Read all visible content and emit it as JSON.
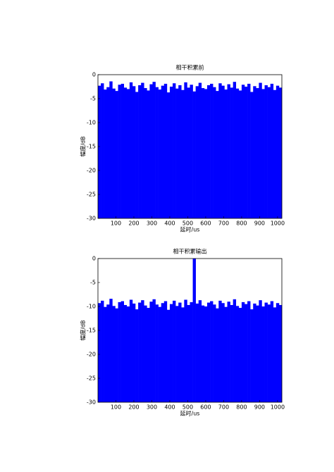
{
  "chart_data": [
    {
      "type": "bar",
      "title": "相干积累前",
      "xlabel": "延时/us",
      "ylabel": "幅度/dB",
      "color": "#0000ff",
      "x": [
        8,
        24,
        40,
        56,
        72,
        88,
        104,
        120,
        136,
        152,
        168,
        184,
        200,
        216,
        232,
        248,
        264,
        280,
        296,
        312,
        328,
        344,
        360,
        376,
        392,
        408,
        424,
        440,
        456,
        472,
        488,
        504,
        520,
        536,
        552,
        568,
        584,
        600,
        616,
        632,
        648,
        664,
        680,
        696,
        712,
        728,
        744,
        760,
        776,
        792,
        808,
        824,
        840,
        856,
        872,
        888,
        904,
        920,
        936,
        952,
        968,
        984,
        1000,
        1016
      ],
      "values": [
        -2.3,
        -1.8,
        -3.1,
        -2.6,
        -1.4,
        -2.9,
        -3.4,
        -2.1,
        -1.9,
        -2.7,
        -3.0,
        -1.6,
        -2.4,
        -3.6,
        -2.2,
        -1.7,
        -2.8,
        -3.3,
        -2.0,
        -1.5,
        -2.6,
        -3.1,
        -2.3,
        -1.9,
        -3.7,
        -2.5,
        -1.8,
        -2.9,
        -2.2,
        -3.2,
        -1.6,
        -2.7,
        -2.1,
        -3.5,
        -2.4,
        -1.7,
        -2.8,
        -3.0,
        -2.2,
        -1.9,
        -2.6,
        -3.4,
        -1.8,
        -2.3,
        -3.1,
        -2.0,
        -2.7,
        -1.5,
        -2.9,
        -3.3,
        -2.1,
        -2.5,
        -1.9,
        -3.6,
        -2.4,
        -2.8,
        -1.7,
        -3.0,
        -2.2,
        -2.6,
        -1.9,
        -3.2,
        -2.3,
        -2.7
      ],
      "xlim": [
        0,
        1024
      ],
      "ylim": [
        -30,
        0
      ],
      "xticks": [
        100,
        200,
        300,
        400,
        500,
        600,
        700,
        800,
        900,
        1000
      ],
      "yticks": [
        -30,
        -25,
        -20,
        -15,
        -10,
        -5,
        0
      ]
    },
    {
      "type": "bar",
      "title": "相干积累输出",
      "xlabel": "延时/us",
      "ylabel": "幅度/dB",
      "color": "#0000ff",
      "x": [
        8,
        24,
        40,
        56,
        72,
        88,
        104,
        120,
        136,
        152,
        168,
        184,
        200,
        216,
        232,
        248,
        264,
        280,
        296,
        312,
        328,
        344,
        360,
        376,
        392,
        408,
        424,
        440,
        456,
        472,
        488,
        504,
        520,
        536,
        552,
        568,
        584,
        600,
        616,
        632,
        648,
        664,
        680,
        696,
        712,
        728,
        744,
        760,
        776,
        792,
        808,
        824,
        840,
        856,
        872,
        888,
        904,
        920,
        936,
        952,
        968,
        984,
        1000,
        1016
      ],
      "values": [
        -9.3,
        -8.8,
        -10.1,
        -9.6,
        -8.4,
        -9.9,
        -10.4,
        -9.1,
        -8.9,
        -9.7,
        -10.0,
        -8.6,
        -9.4,
        -10.6,
        -9.2,
        -8.7,
        -9.8,
        -10.3,
        -9.0,
        -8.5,
        -9.6,
        -10.1,
        -9.3,
        -8.9,
        -10.7,
        -9.5,
        -8.8,
        -9.9,
        -9.2,
        -10.2,
        -8.6,
        -9.7,
        -9.1,
        0,
        -9.4,
        -8.7,
        -9.8,
        -10.0,
        -9.2,
        -8.9,
        -9.6,
        -10.4,
        -8.8,
        -9.3,
        -10.1,
        -9.0,
        -9.7,
        -8.5,
        -9.9,
        -10.3,
        -9.1,
        -9.5,
        -8.9,
        -10.6,
        -9.4,
        -9.8,
        -8.7,
        -10.0,
        -9.2,
        -9.6,
        -8.9,
        -10.2,
        -9.3,
        -9.7
      ],
      "xlim": [
        0,
        1024
      ],
      "ylim": [
        -30,
        0
      ],
      "xticks": [
        100,
        200,
        300,
        400,
        500,
        600,
        700,
        800,
        900,
        1000
      ],
      "yticks": [
        -30,
        -25,
        -20,
        -15,
        -10,
        -5,
        0
      ]
    }
  ]
}
